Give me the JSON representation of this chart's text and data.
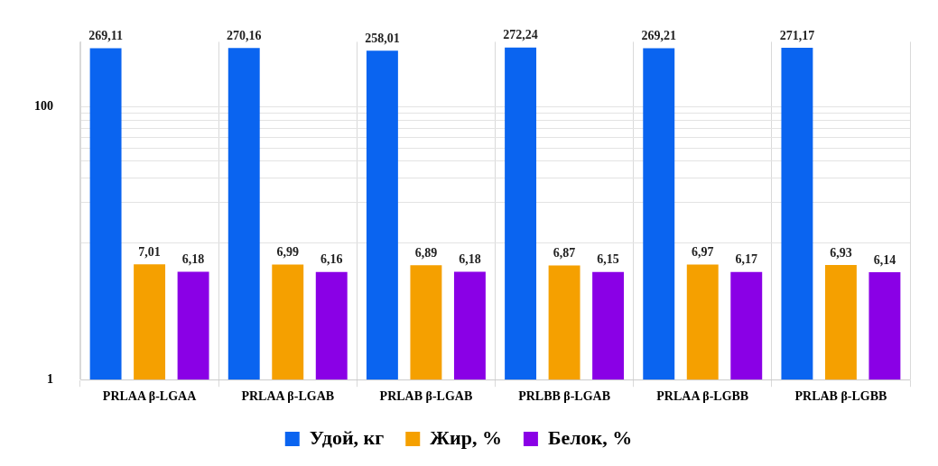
{
  "chart_data": {
    "type": "bar",
    "categories": [
      "PRLAA β-LGAA",
      "PRLAA β-LGAB",
      "PRLAB β-LGAB",
      "PRLBB β-LGAB",
      "PRLAA β-LGBB",
      "PRLAB β-LGBB"
    ],
    "series": [
      {
        "name": "Удой, кг",
        "color": "#0a64f0",
        "values": [
          269.11,
          270.16,
          258.01,
          272.24,
          269.21,
          271.17
        ],
        "value_labels": [
          "269,11",
          "270,16",
          "258,01",
          "272,24",
          "269,21",
          "271,17"
        ]
      },
      {
        "name": "Жир, %",
        "color": "#f5a000",
        "values": [
          7.01,
          6.99,
          6.89,
          6.87,
          6.97,
          6.93
        ],
        "value_labels": [
          "7,01",
          "6,99",
          "6,89",
          "6,87",
          "6,97",
          "6,93"
        ]
      },
      {
        "name": "Белок, %",
        "color": "#8a00e6",
        "values": [
          6.18,
          6.16,
          6.18,
          6.15,
          6.17,
          6.14
        ],
        "value_labels": [
          "6,18",
          "6,16",
          "6,18",
          "6,15",
          "6,17",
          "6,14"
        ]
      }
    ],
    "log": true,
    "ylim": [
      1,
      300
    ],
    "yticks": [
      1,
      {
        "value": 10,
        "label": null
      },
      {
        "value": 20,
        "label": null
      },
      {
        "value": 30,
        "label": null
      },
      {
        "value": 40,
        "label": null
      },
      {
        "value": 50,
        "label": null
      },
      {
        "value": 60,
        "label": null
      },
      {
        "value": 70,
        "label": null
      },
      {
        "value": 80,
        "label": null
      },
      {
        "value": 90,
        "label": null
      },
      100
    ],
    "grid": true,
    "legend": "bottom"
  }
}
